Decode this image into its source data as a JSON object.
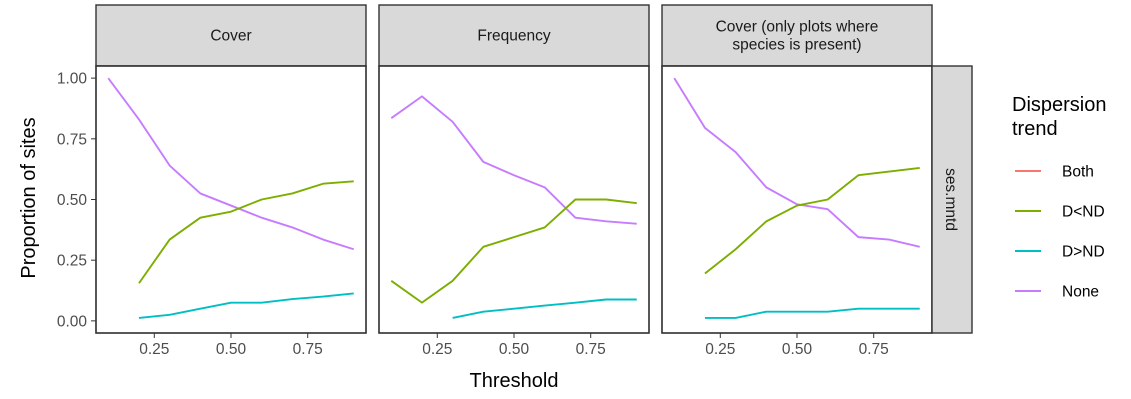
{
  "chart_data": {
    "type": "line",
    "xlabel": "Threshold",
    "ylabel": "Proportion of sites",
    "xlim": [
      0.06,
      0.94
    ],
    "ylim": [
      -0.05,
      1.05
    ],
    "x_ticks": [
      0.25,
      0.5,
      0.75
    ],
    "x_tick_labels": [
      "0.25",
      "0.50",
      "0.75"
    ],
    "y_ticks": [
      0,
      0.25,
      0.5,
      0.75,
      1
    ],
    "y_tick_labels": [
      "0.00",
      "0.25",
      "0.50",
      "0.75",
      "1.00"
    ],
    "row_strip": "ses.mntd",
    "grid": false,
    "legend": {
      "title": [
        "Dispersion",
        "trend"
      ],
      "placement": "right",
      "entries": [
        {
          "name": "Both",
          "color": "#F8766D"
        },
        {
          "name": "D<ND",
          "color": "#7CAE00"
        },
        {
          "name": "D>ND",
          "color": "#00BFC4"
        },
        {
          "name": "None",
          "color": "#C77CFF"
        }
      ]
    },
    "panels": [
      {
        "strip": [
          "Cover"
        ],
        "series": [
          {
            "name": "None",
            "color": "#C77CFF",
            "x": [
              0.1,
              0.2,
              0.3,
              0.4,
              0.5,
              0.6,
              0.7,
              0.8,
              0.9
            ],
            "y": [
              1.0,
              0.83,
              0.64,
              0.525,
              0.475,
              0.425,
              0.385,
              0.335,
              0.295
            ]
          },
          {
            "name": "D<ND",
            "color": "#7CAE00",
            "x": [
              0.2,
              0.3,
              0.4,
              0.5,
              0.6,
              0.7,
              0.8,
              0.9
            ],
            "y": [
              0.155,
              0.335,
              0.425,
              0.45,
              0.5,
              0.525,
              0.565,
              0.575
            ]
          },
          {
            "name": "D>ND",
            "color": "#00BFC4",
            "x": [
              0.2,
              0.3,
              0.4,
              0.5,
              0.6,
              0.7,
              0.8,
              0.9
            ],
            "y": [
              0.012,
              0.025,
              0.05,
              0.075,
              0.075,
              0.09,
              0.1,
              0.113
            ]
          }
        ]
      },
      {
        "strip": [
          "Frequency"
        ],
        "series": [
          {
            "name": "None",
            "color": "#C77CFF",
            "x": [
              0.1,
              0.2,
              0.3,
              0.4,
              0.5,
              0.6,
              0.7,
              0.8,
              0.9
            ],
            "y": [
              0.835,
              0.925,
              0.82,
              0.655,
              0.6,
              0.55,
              0.425,
              0.41,
              0.4
            ]
          },
          {
            "name": "D<ND",
            "color": "#7CAE00",
            "x": [
              0.1,
              0.2,
              0.3,
              0.4,
              0.5,
              0.6,
              0.7,
              0.8,
              0.9
            ],
            "y": [
              0.165,
              0.075,
              0.165,
              0.305,
              0.345,
              0.385,
              0.5,
              0.5,
              0.485
            ]
          },
          {
            "name": "D>ND",
            "color": "#00BFC4",
            "x": [
              0.3,
              0.4,
              0.5,
              0.6,
              0.7,
              0.8,
              0.9
            ],
            "y": [
              0.012,
              0.038,
              0.05,
              0.063,
              0.075,
              0.088,
              0.088
            ]
          }
        ]
      },
      {
        "strip": [
          "Cover (only plots where",
          "species is present)"
        ],
        "series": [
          {
            "name": "None",
            "color": "#C77CFF",
            "x": [
              0.1,
              0.2,
              0.3,
              0.4,
              0.5,
              0.6,
              0.7,
              0.8,
              0.9
            ],
            "y": [
              1.0,
              0.795,
              0.695,
              0.55,
              0.48,
              0.46,
              0.345,
              0.335,
              0.305
            ]
          },
          {
            "name": "D<ND",
            "color": "#7CAE00",
            "x": [
              0.2,
              0.3,
              0.4,
              0.5,
              0.6,
              0.7,
              0.8,
              0.9
            ],
            "y": [
              0.195,
              0.295,
              0.41,
              0.475,
              0.5,
              0.6,
              0.615,
              0.63
            ]
          },
          {
            "name": "D>ND",
            "color": "#00BFC4",
            "x": [
              0.2,
              0.3,
              0.4,
              0.5,
              0.6,
              0.7,
              0.8,
              0.9
            ],
            "y": [
              0.012,
              0.012,
              0.038,
              0.038,
              0.038,
              0.05,
              0.05,
              0.05
            ]
          }
        ]
      }
    ]
  }
}
